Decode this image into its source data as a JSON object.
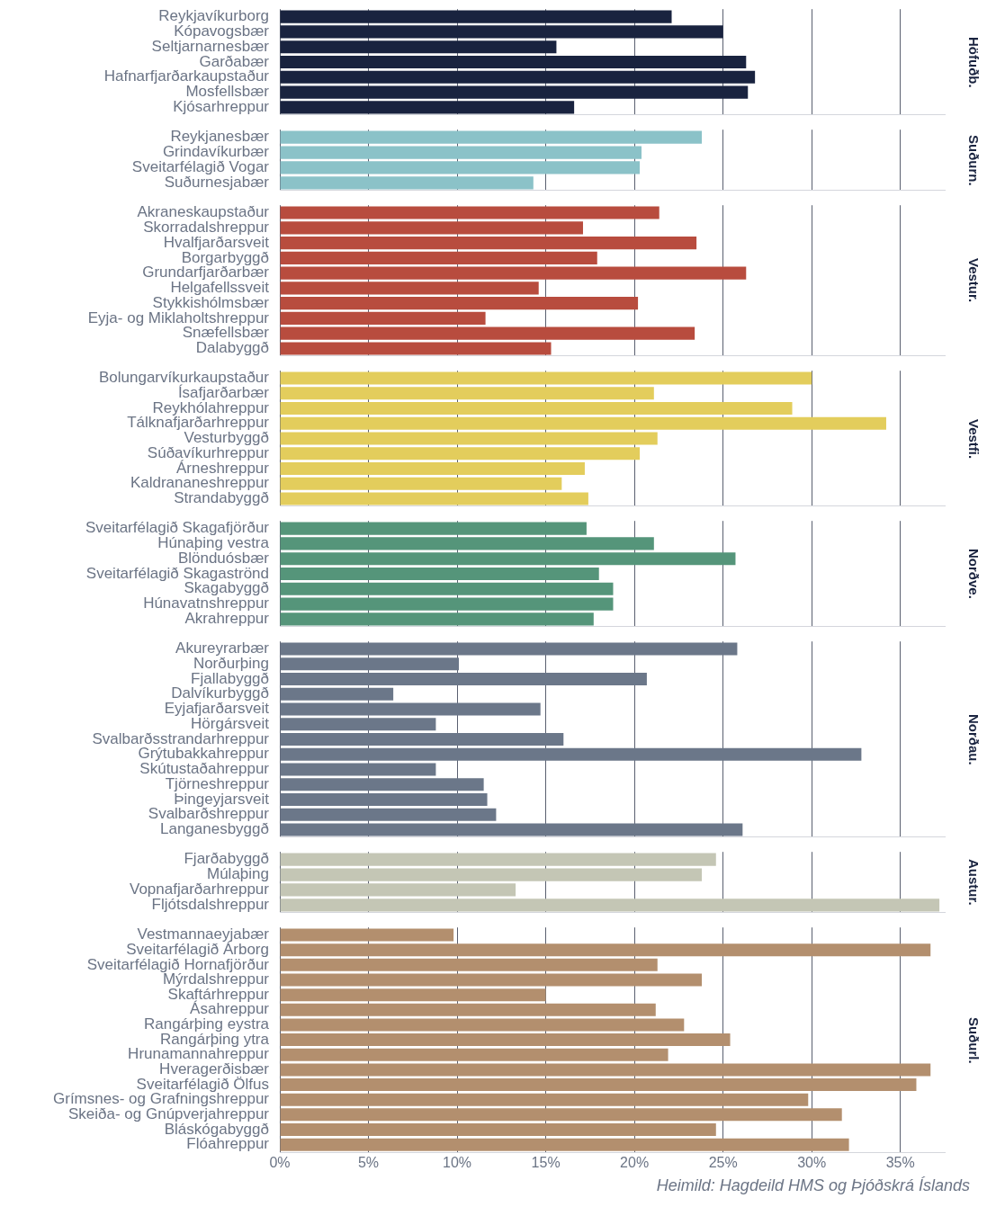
{
  "chart_data": [
    {
      "type": "bar",
      "orientation": "horizontal",
      "y2label": "Höfuðb.",
      "categories": [
        "Reykjavíkurborg",
        "Kópavogsbær",
        "Seltjarnarnesbær",
        "Garðabær",
        "Hafnarfjarðarkaupstaður",
        "Mosfellsbær",
        "Kjósarhreppur"
      ],
      "values": [
        22.1,
        25.0,
        15.6,
        26.3,
        26.8,
        26.4,
        16.6
      ],
      "color": "#19233f",
      "xlim": [
        0,
        37.5
      ],
      "xticks": [
        0,
        5,
        10,
        15,
        20,
        25,
        30,
        35
      ],
      "grid": "x",
      "tick_labels": "y"
    },
    {
      "type": "bar",
      "orientation": "horizontal",
      "y2label": "Suðurn.",
      "categories": [
        "Reykjanesbær",
        "Grindavíkurbær",
        "Sveitarfélagið Vogar",
        "Suðurnesjabær"
      ],
      "values": [
        23.8,
        20.4,
        20.3,
        14.3
      ],
      "color": "#8bc2c8",
      "xlim": [
        0,
        37.5
      ],
      "xticks": [
        0,
        5,
        10,
        15,
        20,
        25,
        30,
        35
      ],
      "grid": "x",
      "tick_labels": "y"
    },
    {
      "type": "bar",
      "orientation": "horizontal",
      "y2label": "Vestur.",
      "categories": [
        "Akraneskaupstaður",
        "Skorradalshreppur",
        "Hvalfjarðarsveit",
        "Borgarbyggð",
        "Grundarfjarðarbær",
        "Helgafellssveit",
        "Stykkishólmsbær",
        "Eyja- og Miklaholtshreppur",
        "Snæfellsbær",
        "Dalabyggð"
      ],
      "values": [
        21.4,
        17.1,
        23.5,
        17.9,
        26.3,
        14.6,
        20.2,
        11.6,
        23.4,
        15.3
      ],
      "color": "#b84c3e",
      "xlim": [
        0,
        37.5
      ],
      "xticks": [
        0,
        5,
        10,
        15,
        20,
        25,
        30,
        35
      ],
      "grid": "x",
      "tick_labels": "y"
    },
    {
      "type": "bar",
      "orientation": "horizontal",
      "y2label": "Vestfi.",
      "categories": [
        "Bolungarvíkurkaupstaður",
        "Ísafjarðarbær",
        "Reykhólahreppur",
        "Tálknafjarðarhreppur",
        "Vesturbyggð",
        "Súðavíkurhreppur",
        "Árneshreppur",
        "Kaldrananeshreppur",
        "Strandabyggð"
      ],
      "values": [
        30.0,
        21.1,
        28.9,
        34.2,
        21.3,
        20.3,
        17.2,
        15.9,
        17.4
      ],
      "color": "#e3cd5c",
      "xlim": [
        0,
        37.5
      ],
      "xticks": [
        0,
        5,
        10,
        15,
        20,
        25,
        30,
        35
      ],
      "grid": "x",
      "tick_labels": "y"
    },
    {
      "type": "bar",
      "orientation": "horizontal",
      "y2label": "Norðve.",
      "categories": [
        "Sveitarfélagið Skagafjörður",
        "Húnaþing vestra",
        "Blönduósbær",
        "Sveitarfélagið Skagaströnd",
        "Skagabyggð",
        "Húnavatnshreppur",
        "Akrahreppur"
      ],
      "values": [
        17.3,
        21.1,
        25.7,
        18.0,
        18.8,
        18.8,
        17.7
      ],
      "color": "#55957a",
      "xlim": [
        0,
        37.5
      ],
      "xticks": [
        0,
        5,
        10,
        15,
        20,
        25,
        30,
        35
      ],
      "grid": "x",
      "tick_labels": "y"
    },
    {
      "type": "bar",
      "orientation": "horizontal",
      "y2label": "Norðau.",
      "categories": [
        "Akureyrarbær",
        "Norðurþing",
        "Fjallabyggð",
        "Dalvíkurbyggð",
        "Eyjafjarðarsveit",
        "Hörgársveit",
        "Svalbarðsstrandarhreppur",
        "Grýtubakkahreppur",
        "Skútustaðahreppur",
        "Tjörneshreppur",
        "Þingeyjarsveit",
        "Svalbarðshreppur",
        "Langanesbyggð"
      ],
      "values": [
        25.8,
        10.1,
        20.7,
        6.4,
        14.7,
        8.8,
        16.0,
        32.8,
        8.8,
        11.5,
        11.7,
        12.2,
        26.1
      ],
      "color": "#6b7789",
      "xlim": [
        0,
        37.5
      ],
      "xticks": [
        0,
        5,
        10,
        15,
        20,
        25,
        30,
        35
      ],
      "grid": "x",
      "tick_labels": "y"
    },
    {
      "type": "bar",
      "orientation": "horizontal",
      "y2label": "Austur.",
      "categories": [
        "Fjarðabyggð",
        "Múlaþing",
        "Vopnafjarðarhreppur",
        "Fljótsdalshreppur"
      ],
      "values": [
        24.6,
        23.8,
        13.3,
        37.2
      ],
      "color": "#c4c6b5",
      "xlim": [
        0,
        37.5
      ],
      "xticks": [
        0,
        5,
        10,
        15,
        20,
        25,
        30,
        35
      ],
      "grid": "x",
      "tick_labels": "y"
    },
    {
      "type": "bar",
      "orientation": "horizontal",
      "y2label": "Suðurl.",
      "categories": [
        "Vestmannaeyjabær",
        "Sveitarfélagið Árborg",
        "Sveitarfélagið Hornafjörður",
        "Mýrdalshreppur",
        "Skaftárhreppur",
        "Ásahreppur",
        "Rangárþing eystra",
        "Rangárþing ytra",
        "Hrunamannahreppur",
        "Hveragerðisbær",
        "Sveitarfélagið Ölfus",
        "Grímsnes- og Grafningshreppur",
        "Skeiða- og Gnúpverjahreppur",
        "Bláskógabyggð",
        "Flóahreppur"
      ],
      "values": [
        9.8,
        36.7,
        21.3,
        23.8,
        15.0,
        21.2,
        22.8,
        25.4,
        21.9,
        36.7,
        35.9,
        29.8,
        31.7,
        24.6,
        32.1
      ],
      "color": "#b38f6e",
      "xlim": [
        0,
        37.5
      ],
      "xticks": [
        {
          "value": 0,
          "label": "0%"
        },
        {
          "value": 5,
          "label": "5%"
        },
        {
          "value": 10,
          "label": "10%"
        },
        {
          "value": 15,
          "label": "15%"
        },
        {
          "value": 20,
          "label": "20%"
        },
        {
          "value": 25,
          "label": "25%"
        },
        {
          "value": 30,
          "label": "30%"
        },
        {
          "value": 35,
          "label": "35%"
        }
      ],
      "grid": "x",
      "annotations": [
        "Heimild: Hagdeild HMS og Þjóðskrá Íslands"
      ]
    }
  ]
}
